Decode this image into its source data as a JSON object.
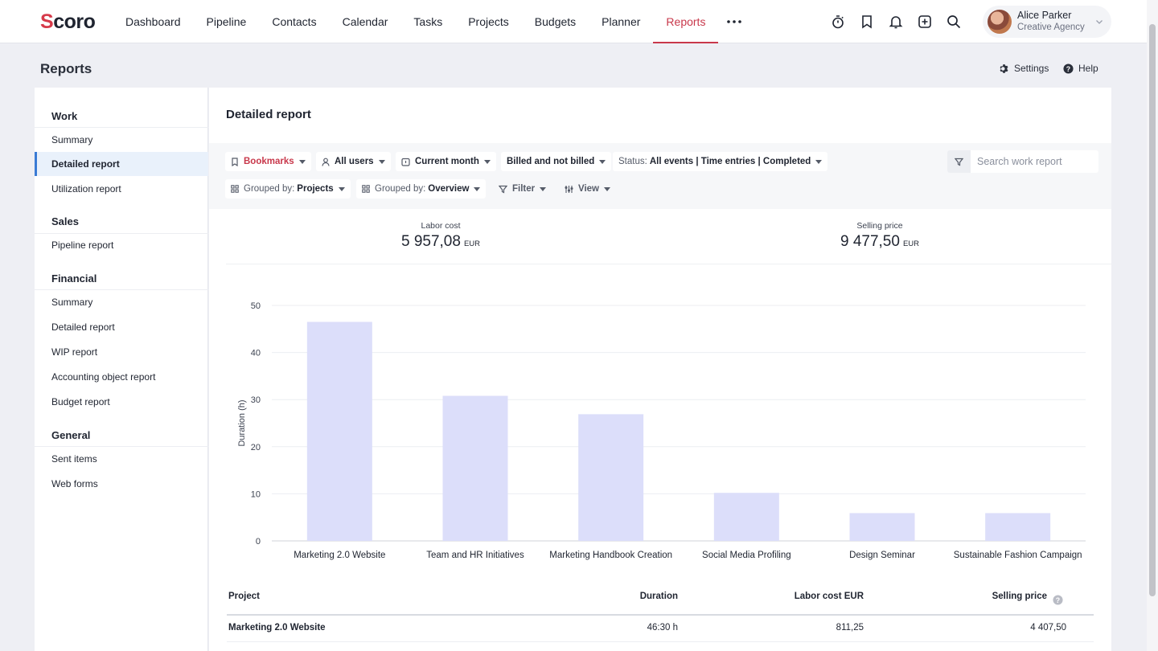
{
  "app": {
    "logo": "Scoro",
    "nav": [
      "Dashboard",
      "Pipeline",
      "Contacts",
      "Calendar",
      "Tasks",
      "Projects",
      "Budgets",
      "Planner",
      "Reports"
    ],
    "active_nav": "Reports",
    "user": {
      "name": "Alice Parker",
      "org": "Creative Agency"
    }
  },
  "page": {
    "title": "Reports",
    "settings_label": "Settings",
    "help_label": "Help"
  },
  "sidebar": {
    "work": {
      "title": "Work",
      "items": [
        "Summary",
        "Detailed report",
        "Utilization report"
      ]
    },
    "sales": {
      "title": "Sales",
      "items": [
        "Pipeline report"
      ]
    },
    "financial": {
      "title": "Financial",
      "items": [
        "Summary",
        "Detailed report",
        "WIP report",
        "Accounting object report",
        "Budget report"
      ]
    },
    "general": {
      "title": "General",
      "items": [
        "Sent items",
        "Web forms"
      ]
    },
    "active": "Detailed report"
  },
  "report": {
    "title": "Detailed report",
    "filters": {
      "bookmarks": "Bookmarks",
      "users": "All users",
      "period": "Current month",
      "billing": "Billed and not billed",
      "status_label": "Status:",
      "status_value": "All events | Time entries | Completed",
      "grouped1_label": "Grouped by:",
      "grouped1_value": "Projects",
      "grouped2_label": "Grouped by:",
      "grouped2_value": "Overview",
      "filter": "Filter",
      "view": "View",
      "search_placeholder": "Search work report"
    },
    "kpis": [
      {
        "label": "Labor cost",
        "value": "5 957,08",
        "currency": "EUR"
      },
      {
        "label": "Selling price",
        "value": "9 477,50",
        "currency": "EUR"
      }
    ]
  },
  "chart_data": {
    "type": "bar",
    "categories": [
      "Marketing 2.0 Website",
      "Team and HR Initiatives",
      "Marketing Handbook Creation",
      "Social Media Profiling",
      "Design Seminar",
      "Sustainable Fashion Campaign"
    ],
    "values": [
      46.5,
      30.8,
      26.9,
      10.2,
      5.9,
      5.9
    ],
    "ylabel": "Duration (h)",
    "xlabel": "",
    "ylim": [
      0,
      50
    ],
    "yticks": [
      0,
      10,
      20,
      30,
      40,
      50
    ],
    "grid": true,
    "bar_color": "#dcdefa"
  },
  "table": {
    "headers": {
      "project": "Project",
      "duration": "Duration",
      "labor": "Labor cost EUR",
      "selling": "Selling price"
    },
    "rows": [
      {
        "project": "Marketing 2.0 Website",
        "duration": "46:30 h",
        "labor": "811,25",
        "selling": "4 407,50"
      }
    ]
  },
  "colors": {
    "accent": "#c8384b",
    "active_item_bg": "#e9f1fb",
    "active_item_border": "#3a7bd5"
  }
}
